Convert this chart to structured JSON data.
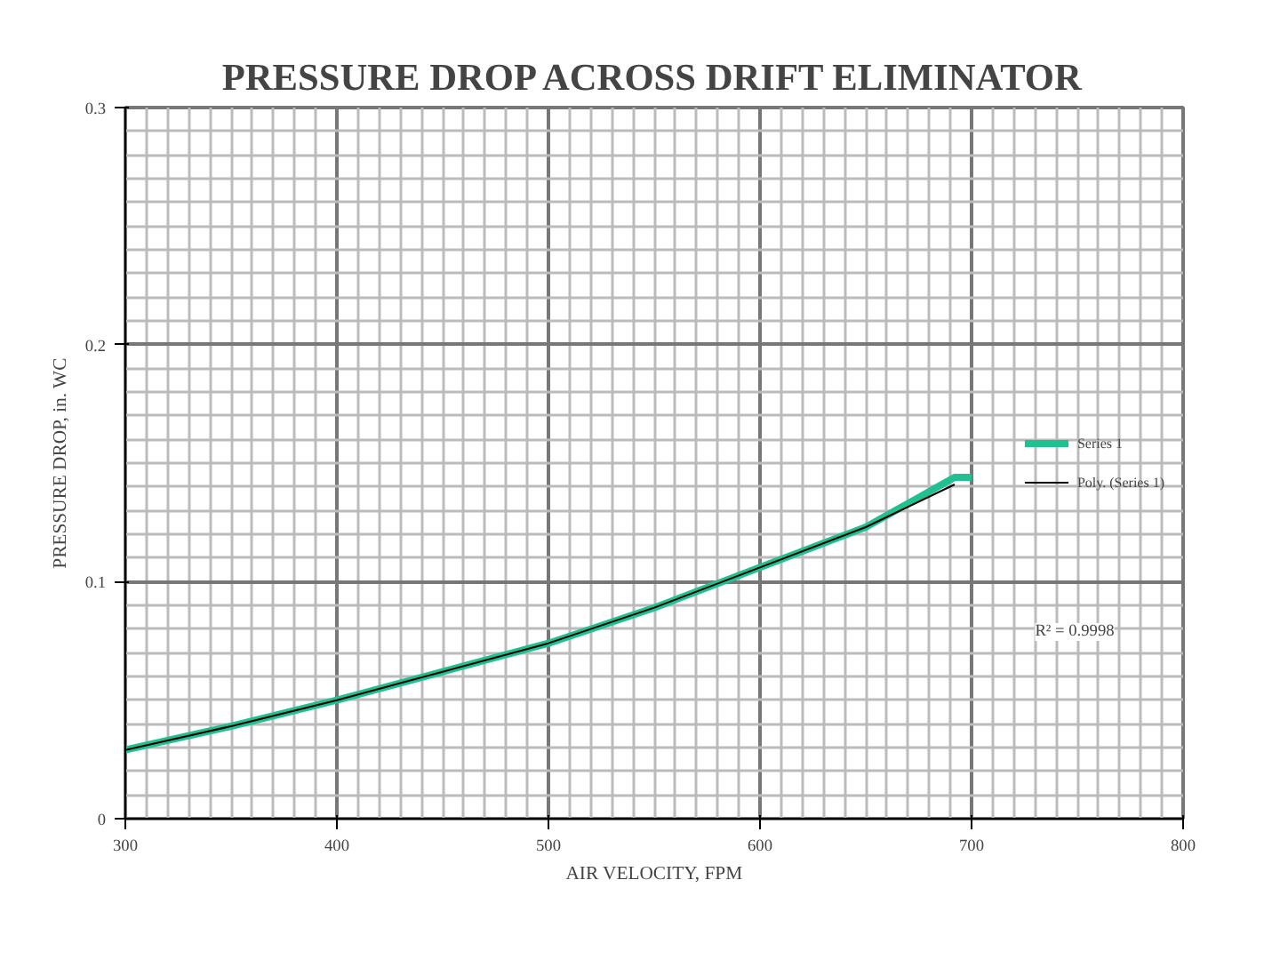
{
  "chart_data": {
    "type": "line",
    "title": "PRESSURE DROP ACROSS DRIFT ELIMINATOR",
    "xlabel": "AIR VELOCITY, FPM",
    "ylabel": "PRESSURE DROP, in. WC",
    "series": [
      {
        "name": "Series 1",
        "color": "#20c090",
        "x": [
          300,
          350,
          400,
          450,
          500,
          550,
          600,
          650,
          692,
          700
        ],
        "values": [
          0.029,
          0.039,
          0.05,
          0.062,
          0.074,
          0.089,
          0.106,
          0.123,
          0.144,
          0.144
        ]
      },
      {
        "name": "Poly. (Series 1)",
        "color": "#000000",
        "type": "line",
        "x": [
          300,
          350,
          400,
          450,
          500,
          550,
          600,
          650,
          692
        ],
        "values": [
          0.029,
          0.039,
          0.05,
          0.062,
          0.074,
          0.089,
          0.106,
          0.123,
          0.141
        ]
      }
    ],
    "xlim": [
      300,
      800
    ],
    "xticks": [
      300,
      400,
      500,
      600,
      700,
      800
    ],
    "ylim": [
      0,
      0.3
    ],
    "yticks": [
      0,
      0.1,
      0.2,
      0.3
    ],
    "grid": true,
    "legend": "right",
    "marker": "none",
    "line_style": "solid",
    "annotations": [
      "R² = 0.9998"
    ]
  }
}
